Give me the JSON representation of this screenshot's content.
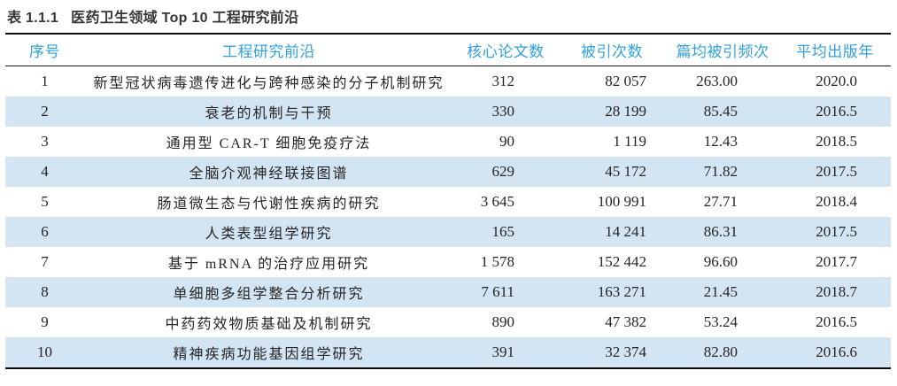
{
  "caption": {
    "label": "表 1.1.1",
    "title": "医药卫生领域 Top 10 工程研究前沿"
  },
  "table": {
    "columns": [
      "序号",
      "工程研究前沿",
      "核心论文数",
      "被引次数",
      "篇均被引频次",
      "平均出版年"
    ],
    "rows": [
      {
        "rank": "1",
        "front": "新型冠状病毒遗传进化与跨种感染的分子机制研究",
        "core_papers": "312",
        "citations": "82 057",
        "citations_per_paper": "263.00",
        "mean_year": "2020.0"
      },
      {
        "rank": "2",
        "front": "衰老的机制与干预",
        "core_papers": "330",
        "citations": "28 199",
        "citations_per_paper": "85.45",
        "mean_year": "2016.5"
      },
      {
        "rank": "3",
        "front": "通用型 CAR-T 细胞免疫疗法",
        "core_papers": "90",
        "citations": "1 119",
        "citations_per_paper": "12.43",
        "mean_year": "2018.5"
      },
      {
        "rank": "4",
        "front": "全脑介观神经联接图谱",
        "core_papers": "629",
        "citations": "45 172",
        "citations_per_paper": "71.82",
        "mean_year": "2017.5"
      },
      {
        "rank": "5",
        "front": "肠道微生态与代谢性疾病的研究",
        "core_papers": "3 645",
        "citations": "100 991",
        "citations_per_paper": "27.71",
        "mean_year": "2018.4"
      },
      {
        "rank": "6",
        "front": "人类表型组学研究",
        "core_papers": "165",
        "citations": "14 241",
        "citations_per_paper": "86.31",
        "mean_year": "2017.5"
      },
      {
        "rank": "7",
        "front": "基于 mRNA 的治疗应用研究",
        "core_papers": "1 578",
        "citations": "152 442",
        "citations_per_paper": "96.60",
        "mean_year": "2017.7"
      },
      {
        "rank": "8",
        "front": "单细胞多组学整合分析研究",
        "core_papers": "7 611",
        "citations": "163 271",
        "citations_per_paper": "21.45",
        "mean_year": "2018.7"
      },
      {
        "rank": "9",
        "front": "中药药效物质基础及机制研究",
        "core_papers": "890",
        "citations": "47 382",
        "citations_per_paper": "53.24",
        "mean_year": "2016.5"
      },
      {
        "rank": "10",
        "front": "精神疾病功能基因组学研究",
        "core_papers": "391",
        "citations": "32 374",
        "citations_per_paper": "82.80",
        "mean_year": "2016.6"
      }
    ]
  },
  "colors": {
    "header_text": "#31a1dc",
    "row_stripe": "#d3e4f3",
    "rule": "#0d0d0d"
  }
}
